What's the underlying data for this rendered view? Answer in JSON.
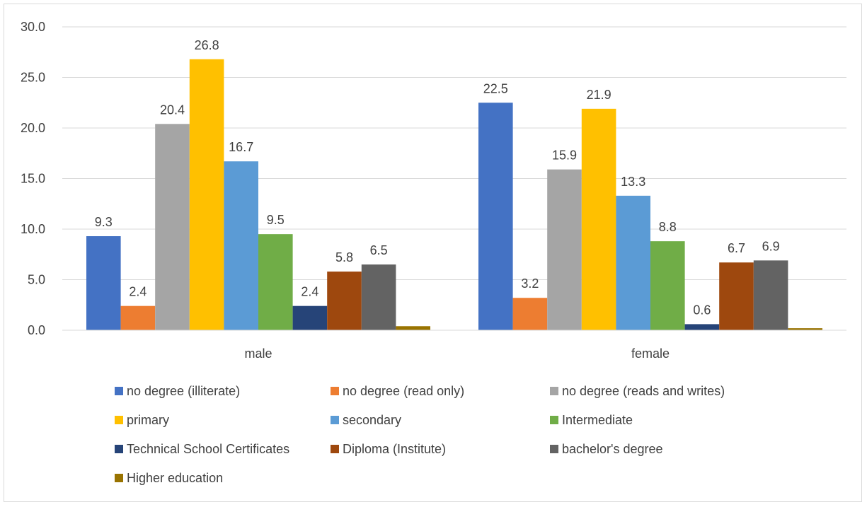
{
  "chart_data": {
    "type": "bar",
    "title": "",
    "xlabel": "",
    "ylabel": "",
    "ylim": [
      0,
      30
    ],
    "y_ticks": [
      "0.0",
      "5.0",
      "10.0",
      "15.0",
      "20.0",
      "25.0",
      "30.0"
    ],
    "grid": true,
    "legend_position": "bottom",
    "categories": [
      "male",
      "female"
    ],
    "series": [
      {
        "name": "no degree (illiterate)",
        "color": "#4472C4",
        "values": [
          9.3,
          22.5
        ],
        "labels": [
          "9.3",
          "22.5"
        ]
      },
      {
        "name": "no degree (read only)",
        "color": "#ED7D31",
        "values": [
          2.4,
          3.2
        ],
        "labels": [
          "2.4",
          "3.2"
        ]
      },
      {
        "name": "no degree (reads and writes)",
        "color": "#A5A5A5",
        "values": [
          20.4,
          15.9
        ],
        "labels": [
          "20.4",
          "15.9"
        ]
      },
      {
        "name": "primary",
        "color": "#FFC000",
        "values": [
          26.8,
          21.9
        ],
        "labels": [
          "26.8",
          "21.9"
        ]
      },
      {
        "name": "secondary",
        "color": "#5B9BD5",
        "values": [
          16.7,
          13.3
        ],
        "labels": [
          "16.7",
          "13.3"
        ]
      },
      {
        "name": "Intermediate",
        "color": "#70AD47",
        "values": [
          9.5,
          8.8
        ],
        "labels": [
          "9.5",
          "8.8"
        ]
      },
      {
        "name": "Technical School Certificates",
        "color": "#264478",
        "values": [
          2.4,
          0.6
        ],
        "labels": [
          "2.4",
          "0.6"
        ]
      },
      {
        "name": "Diploma (Institute)",
        "color": "#9E480E",
        "values": [
          5.8,
          6.7
        ],
        "labels": [
          "5.8",
          "6.7"
        ]
      },
      {
        "name": "bachelor's degree",
        "color": "#636363",
        "values": [
          6.5,
          6.9
        ],
        "labels": [
          "6.5",
          "6.9"
        ]
      },
      {
        "name": "Higher education",
        "color": "#997300",
        "values": [
          0.4,
          0.2
        ],
        "labels": [
          "",
          ""
        ]
      }
    ]
  }
}
